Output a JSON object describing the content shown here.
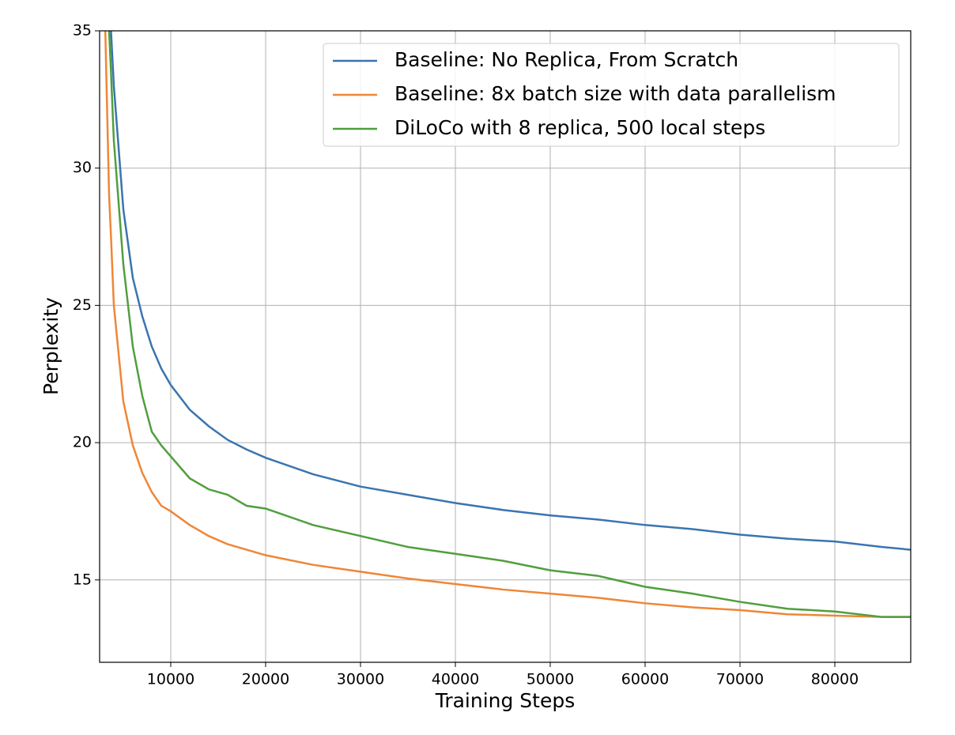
{
  "chart_data": {
    "type": "line",
    "xlabel": "Training Steps",
    "ylabel": "Perplexity",
    "x": [
      3100,
      3500,
      3700,
      4000,
      5000,
      6000,
      7000,
      8000,
      9000,
      10000,
      12000,
      14000,
      16000,
      18000,
      20000,
      25000,
      30000,
      35000,
      40000,
      45000,
      50000,
      55000,
      60000,
      65000,
      70000,
      75000,
      80000,
      85000,
      88000
    ],
    "series": [
      {
        "name": "Baseline: No Replica, From Scratch",
        "color": "#3a75af",
        "values": [
          null,
          null,
          35,
          33,
          28.5,
          26,
          24.6,
          23.5,
          22.7,
          22.1,
          21.2,
          20.6,
          20.1,
          19.75,
          19.45,
          18.85,
          18.4,
          18.1,
          17.8,
          17.55,
          17.35,
          17.2,
          17.0,
          16.85,
          16.65,
          16.5,
          16.4,
          16.2,
          16.1
        ]
      },
      {
        "name": "Baseline: 8x batch size with data parallelism",
        "color": "#ef8636",
        "values": [
          35,
          29,
          27.5,
          25,
          21.5,
          19.9,
          18.9,
          18.2,
          17.7,
          17.5,
          17.0,
          16.6,
          16.3,
          16.1,
          15.9,
          15.55,
          15.3,
          15.05,
          14.85,
          14.65,
          14.5,
          14.35,
          14.15,
          14.0,
          13.9,
          13.75,
          13.7,
          13.65,
          13.65
        ]
      },
      {
        "name": "DiLoCo with 8 replica, 500 local steps",
        "color": "#519e3e",
        "values": [
          null,
          35,
          33.5,
          31,
          26.5,
          23.5,
          21.7,
          20.4,
          19.9,
          19.5,
          18.7,
          18.3,
          18.1,
          17.7,
          17.6,
          17.0,
          16.6,
          16.2,
          15.95,
          15.7,
          15.35,
          15.15,
          14.75,
          14.5,
          14.2,
          13.95,
          13.85,
          13.65,
          13.65
        ]
      }
    ],
    "xlim": [
      2500,
      88000
    ],
    "ylim": [
      12,
      35
    ],
    "xticks": [
      10000,
      20000,
      30000,
      40000,
      50000,
      60000,
      70000,
      80000
    ],
    "yticks": [
      15,
      20,
      25,
      30,
      35
    ],
    "grid": true,
    "legend": "upper right"
  }
}
